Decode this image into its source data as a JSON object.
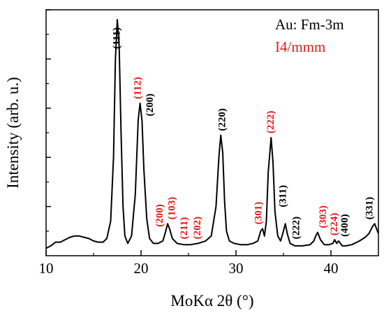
{
  "chart_data": {
    "type": "line",
    "title": "",
    "xlabel": "MoKα 2θ (°)",
    "ylabel": "Intensity (arb. u.)",
    "xlim": [
      10,
      45
    ],
    "ylim": [
      0,
      100
    ],
    "xticks": [
      10,
      20,
      30,
      40
    ],
    "y_tick_labels_shown": false,
    "grid": false,
    "legend_position": "top-right",
    "legend": [
      {
        "label": "Au: Fm-3m",
        "color": "#000000"
      },
      {
        "label": "I4/mmm",
        "color": "#e8181a"
      }
    ],
    "series": [
      {
        "color": "#000000",
        "x": [
          10.0,
          10.5,
          11,
          11.5,
          12,
          12.5,
          13,
          13.5,
          14,
          14.5,
          15,
          15.5,
          16,
          16.4,
          16.8,
          17.1,
          17.3,
          17.5,
          17.7,
          17.9,
          18.1,
          18.3,
          18.6,
          19.0,
          19.4,
          19.7,
          19.9,
          20.1,
          20.3,
          20.6,
          20.9,
          21.3,
          21.8,
          22.3,
          22.6,
          22.8,
          23.0,
          23.3,
          23.8,
          24.5,
          25.2,
          26.0,
          26.8,
          27.4,
          27.9,
          28.2,
          28.4,
          28.6,
          28.8,
          29.0,
          29.3,
          29.8,
          30.5,
          31.2,
          31.8,
          32.3,
          32.6,
          32.8,
          33.0,
          33.2,
          33.4,
          33.7,
          33.9,
          34.1,
          34.4,
          34.7,
          35.0,
          35.2,
          35.4,
          35.7,
          36.2,
          37.0,
          37.8,
          38.2,
          38.4,
          38.6,
          38.9,
          39.3,
          39.8,
          40.2,
          40.4,
          40.6,
          40.8,
          41.0,
          41.2,
          41.6,
          42.2,
          43.0,
          43.6,
          44.0,
          44.4,
          44.6,
          44.8,
          45.0
        ],
        "values": [
          3.0,
          4.0,
          5.5,
          5.5,
          6.5,
          7.5,
          8.0,
          8.0,
          7.5,
          7.0,
          6.0,
          5.5,
          5.5,
          7.0,
          14.0,
          40.0,
          80.0,
          96.0,
          85.0,
          50.0,
          20.0,
          8.0,
          5.0,
          8.0,
          25.0,
          55.0,
          62.0,
          55.0,
          35.0,
          15.0,
          7.0,
          5.0,
          5.0,
          6.0,
          10.0,
          13.0,
          11.0,
          7.0,
          5.0,
          4.5,
          4.5,
          5.0,
          6.0,
          8.0,
          20.0,
          40.0,
          49.0,
          42.0,
          22.0,
          10.0,
          6.0,
          5.0,
          4.5,
          4.5,
          5.0,
          6.0,
          10.0,
          11.0,
          8.0,
          14.0,
          34.0,
          48.0,
          38.0,
          18.0,
          8.0,
          6.0,
          10.0,
          13.0,
          9.0,
          5.0,
          4.0,
          4.0,
          4.5,
          6.0,
          8.0,
          9.5,
          6.5,
          4.5,
          4.5,
          5.0,
          6.5,
          5.0,
          6.0,
          5.0,
          4.0,
          4.0,
          4.5,
          6.0,
          7.5,
          9.0,
          12.0,
          13.0,
          11.0,
          9.0
        ]
      }
    ],
    "peak_labels": [
      {
        "text": "(111)",
        "x": 17.4,
        "color": "#000000"
      },
      {
        "text": "(112)",
        "x": 19.6,
        "color": "#e8181a"
      },
      {
        "text": "(200)",
        "x": 20.9,
        "color": "#000000"
      },
      {
        "text": "(200)",
        "x": 21.9,
        "color": "#e8181a"
      },
      {
        "text": "(103)",
        "x": 23.2,
        "color": "#e8181a"
      },
      {
        "text": "(211)",
        "x": 24.5,
        "color": "#e8181a"
      },
      {
        "text": "(202)",
        "x": 25.9,
        "color": "#e8181a"
      },
      {
        "text": "(220)",
        "x": 28.5,
        "color": "#000000"
      },
      {
        "text": "(301)",
        "x": 32.3,
        "color": "#e8181a"
      },
      {
        "text": "(222)",
        "x": 33.6,
        "color": "#e8181a"
      },
      {
        "text": "(311)",
        "x": 34.9,
        "color": "#000000"
      },
      {
        "text": "(222)",
        "x": 36.3,
        "color": "#000000"
      },
      {
        "text": "(303)",
        "x": 39.1,
        "color": "#e8181a"
      },
      {
        "text": "(224)",
        "x": 40.3,
        "color": "#e8181a"
      },
      {
        "text": "(400)",
        "x": 41.4,
        "color": "#000000"
      },
      {
        "text": "(331)",
        "x": 44.0,
        "color": "#000000"
      }
    ]
  }
}
